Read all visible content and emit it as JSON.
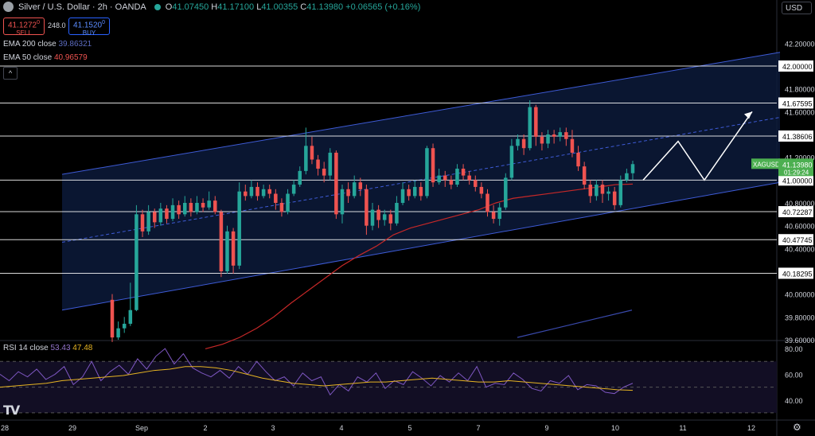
{
  "header": {
    "symbol_title": "Silver / U.S. Dollar · 2h · OANDA",
    "ohlc": {
      "o_label": "O",
      "o": "41.07450",
      "h_label": "H",
      "h": "41.17100",
      "l_label": "L",
      "l": "41.00355",
      "c_label": "C",
      "c": "41.13980",
      "change": "+0.06565 (+0.16%)"
    },
    "sell": {
      "price": "41.1272",
      "price_sup": "0",
      "label": "SELL"
    },
    "buy": {
      "price": "41.1520",
      "price_sup": "0",
      "label": "BUY"
    },
    "spread": "248.0",
    "ema200": {
      "label": "EMA 200 close",
      "value": "39.86321"
    },
    "ema50": {
      "label": "EMA 50 close",
      "value": "40.96579"
    },
    "currency": "USD"
  },
  "rsi_legend": {
    "label": "RSI 14 close",
    "value1": "53.43",
    "value2": "47.48"
  },
  "colors": {
    "up": "#26a69a",
    "down": "#ef5350",
    "channel": "#3e5bd6",
    "ema50": "#c62828",
    "ema200": "#3949ab",
    "rsi": "#7e57c2",
    "rsi_ma": "#e6b422",
    "hline": "#ffffff",
    "price_tag": "#4caf50"
  },
  "icons": {
    "tv_logo": "tradingview-logo",
    "gear": "gear-icon"
  },
  "chart_data": {
    "type": "candlestick",
    "symbol": "XAGUSD",
    "timeframe": "2h",
    "price_axis": {
      "ylim": [
        39.6,
        42.3
      ],
      "ticks": [
        "42.20000",
        "41.80000",
        "41.60000",
        "41.20000",
        "40.80000",
        "40.60000",
        "40.40000",
        "40.00000",
        "39.80000",
        "39.60000"
      ],
      "levels": [
        "42.00000",
        "41.67595",
        "41.38606",
        "41.00000",
        "40.72287",
        "40.47745",
        "40.18295"
      ]
    },
    "price_tag": {
      "symbol": "XAGUSD",
      "price": "41.13980",
      "countdown": "01:29:24"
    },
    "x_ticks": [
      "28",
      "29",
      "Sep",
      "2",
      "3",
      "4",
      "5",
      "7",
      "9",
      "10",
      "11",
      "12"
    ],
    "candles": [
      [
        39.95,
        39.62,
        40.0,
        39.58
      ],
      [
        39.62,
        39.7,
        39.76,
        39.6
      ],
      [
        39.7,
        39.74,
        39.8,
        39.66
      ],
      [
        39.74,
        39.86,
        40.1,
        39.72
      ],
      [
        39.86,
        40.7,
        40.78,
        39.85
      ],
      [
        40.7,
        40.55,
        40.74,
        40.5
      ],
      [
        40.55,
        40.72,
        40.78,
        40.52
      ],
      [
        40.72,
        40.63,
        40.75,
        40.58
      ],
      [
        40.63,
        40.75,
        40.8,
        40.6
      ],
      [
        40.75,
        40.66,
        40.78,
        40.62
      ],
      [
        40.66,
        40.78,
        40.84,
        40.64
      ],
      [
        40.78,
        40.7,
        40.82,
        40.66
      ],
      [
        40.7,
        40.8,
        40.86,
        40.68
      ],
      [
        40.8,
        40.72,
        40.84,
        40.68
      ],
      [
        40.72,
        40.8,
        40.86,
        40.7
      ],
      [
        40.8,
        40.76,
        40.84,
        40.72
      ],
      [
        40.76,
        40.82,
        40.9,
        40.74
      ],
      [
        40.82,
        40.72,
        40.86,
        40.7
      ],
      [
        40.72,
        40.2,
        40.74,
        40.15
      ],
      [
        40.2,
        40.55,
        40.6,
        40.18
      ],
      [
        40.55,
        40.25,
        40.58,
        40.18
      ],
      [
        40.25,
        40.9,
        40.98,
        40.22
      ],
      [
        40.9,
        40.86,
        40.96,
        40.82
      ],
      [
        40.86,
        40.94,
        41.0,
        40.84
      ],
      [
        40.94,
        40.86,
        40.98,
        40.82
      ],
      [
        40.86,
        40.92,
        40.96,
        40.84
      ],
      [
        40.92,
        40.88,
        40.96,
        40.84
      ],
      [
        40.88,
        40.8,
        40.92,
        40.74
      ],
      [
        40.8,
        40.72,
        40.84,
        40.68
      ],
      [
        40.72,
        40.88,
        40.92,
        40.7
      ],
      [
        40.88,
        40.96,
        41.0,
        40.86
      ],
      [
        40.96,
        41.08,
        41.12,
        40.94
      ],
      [
        41.08,
        41.3,
        41.46,
        41.05
      ],
      [
        41.3,
        41.18,
        41.38,
        41.14
      ],
      [
        41.18,
        41.1,
        41.22,
        41.04
      ],
      [
        41.1,
        41.04,
        41.16,
        40.98
      ],
      [
        41.04,
        41.24,
        41.28,
        41.0
      ],
      [
        41.24,
        40.7,
        41.26,
        40.66
      ],
      [
        40.7,
        40.92,
        40.96,
        40.62
      ],
      [
        40.92,
        40.86,
        40.98,
        40.8
      ],
      [
        40.86,
        40.98,
        41.04,
        40.84
      ],
      [
        40.98,
        40.92,
        41.02,
        40.86
      ],
      [
        40.92,
        40.6,
        40.96,
        40.52
      ],
      [
        40.6,
        40.74,
        40.8,
        40.56
      ],
      [
        40.74,
        40.65,
        40.78,
        40.58
      ],
      [
        40.65,
        40.7,
        40.74,
        40.6
      ],
      [
        40.7,
        40.62,
        40.74,
        40.56
      ],
      [
        40.62,
        40.8,
        40.86,
        40.6
      ],
      [
        40.8,
        40.92,
        40.98,
        40.78
      ],
      [
        40.92,
        40.86,
        40.96,
        40.82
      ],
      [
        40.86,
        40.94,
        41.0,
        40.84
      ],
      [
        40.94,
        40.86,
        40.98,
        40.82
      ],
      [
        40.86,
        41.28,
        41.3,
        40.84
      ],
      [
        41.28,
        40.98,
        41.32,
        40.94
      ],
      [
        40.98,
        41.04,
        41.1,
        40.96
      ],
      [
        41.04,
        41.0,
        41.08,
        40.94
      ],
      [
        41.0,
        40.96,
        41.04,
        40.92
      ],
      [
        40.96,
        41.1,
        41.14,
        40.94
      ],
      [
        41.1,
        41.04,
        41.14,
        41.0
      ],
      [
        41.04,
        41.0,
        41.08,
        40.96
      ],
      [
        41.0,
        40.94,
        41.04,
        40.9
      ],
      [
        40.94,
        40.88,
        40.98,
        40.84
      ],
      [
        40.88,
        40.72,
        40.92,
        40.68
      ],
      [
        40.72,
        40.66,
        40.78,
        40.62
      ],
      [
        40.66,
        40.76,
        40.8,
        40.6
      ],
      [
        40.76,
        41.02,
        41.06,
        40.74
      ],
      [
        41.02,
        41.3,
        41.36,
        41.0
      ],
      [
        41.3,
        41.36,
        41.4,
        41.26
      ],
      [
        41.36,
        41.28,
        41.4,
        41.22
      ],
      [
        41.28,
        41.64,
        41.7,
        41.26
      ],
      [
        41.64,
        41.38,
        41.66,
        41.3
      ],
      [
        41.38,
        41.32,
        41.42,
        41.26
      ],
      [
        41.32,
        41.4,
        41.44,
        41.28
      ],
      [
        41.4,
        41.38,
        41.44,
        41.32
      ],
      [
        41.38,
        41.42,
        41.46,
        41.34
      ],
      [
        41.42,
        41.36,
        41.46,
        41.3
      ],
      [
        41.36,
        41.24,
        41.44,
        41.2
      ],
      [
        41.24,
        41.12,
        41.3,
        41.08
      ],
      [
        41.12,
        40.96,
        41.16,
        40.92
      ],
      [
        40.96,
        40.86,
        41.0,
        40.8
      ],
      [
        40.86,
        40.96,
        41.0,
        40.82
      ],
      [
        40.96,
        40.88,
        41.0,
        40.8
      ],
      [
        40.88,
        40.9,
        40.94,
        40.82
      ],
      [
        40.9,
        40.78,
        40.94,
        40.74
      ],
      [
        40.78,
        41.0,
        41.04,
        40.76
      ],
      [
        41.0,
        41.06,
        41.1,
        40.98
      ],
      [
        41.06,
        41.14,
        41.17,
        41.0
      ]
    ],
    "ema50": [
      39.52,
      39.56,
      39.62,
      39.7,
      39.8,
      39.92,
      40.03,
      40.14,
      40.25,
      40.34,
      40.42,
      40.52,
      40.58,
      40.62,
      40.66,
      40.7,
      40.74,
      40.8,
      40.84,
      40.86,
      40.88,
      40.9,
      40.92,
      40.94,
      40.96,
      40.965
    ],
    "ema200_visible": [
      39.62,
      39.7,
      39.78,
      39.86
    ],
    "rsi": {
      "ylim": [
        25,
        85
      ],
      "ticks": [
        "80.00",
        "60.00",
        "40.00"
      ],
      "bands": [
        70,
        50,
        30
      ],
      "rsi_values": [
        60,
        55,
        62,
        58,
        64,
        56,
        60,
        66,
        52,
        58,
        70,
        55,
        62,
        67,
        60,
        72,
        64,
        74,
        80,
        68,
        76,
        65,
        61,
        58,
        63,
        57,
        66,
        60,
        70,
        62,
        55,
        58,
        51,
        61,
        55,
        58,
        44,
        52,
        47,
        58,
        54,
        61,
        49,
        55,
        52,
        62,
        57,
        51,
        59,
        54,
        61,
        55,
        66,
        50,
        53,
        52,
        61,
        56,
        49,
        47,
        55,
        53,
        59,
        48,
        52,
        51,
        46,
        45,
        50,
        53
      ],
      "ma_values": [
        50,
        51,
        52,
        53,
        55,
        56,
        57,
        58,
        59,
        61,
        63,
        64,
        66,
        66,
        65,
        63,
        60,
        57,
        55,
        53,
        52,
        51,
        52,
        53,
        54,
        54,
        55,
        56,
        57,
        56,
        55,
        54,
        54,
        55,
        54,
        53,
        52,
        51,
        50,
        49,
        48,
        47.5
      ]
    },
    "projection_path": [
      [
        41.0,
        0
      ],
      [
        41.34,
        1
      ],
      [
        41.0,
        2
      ],
      [
        41.6,
        3
      ]
    ]
  }
}
